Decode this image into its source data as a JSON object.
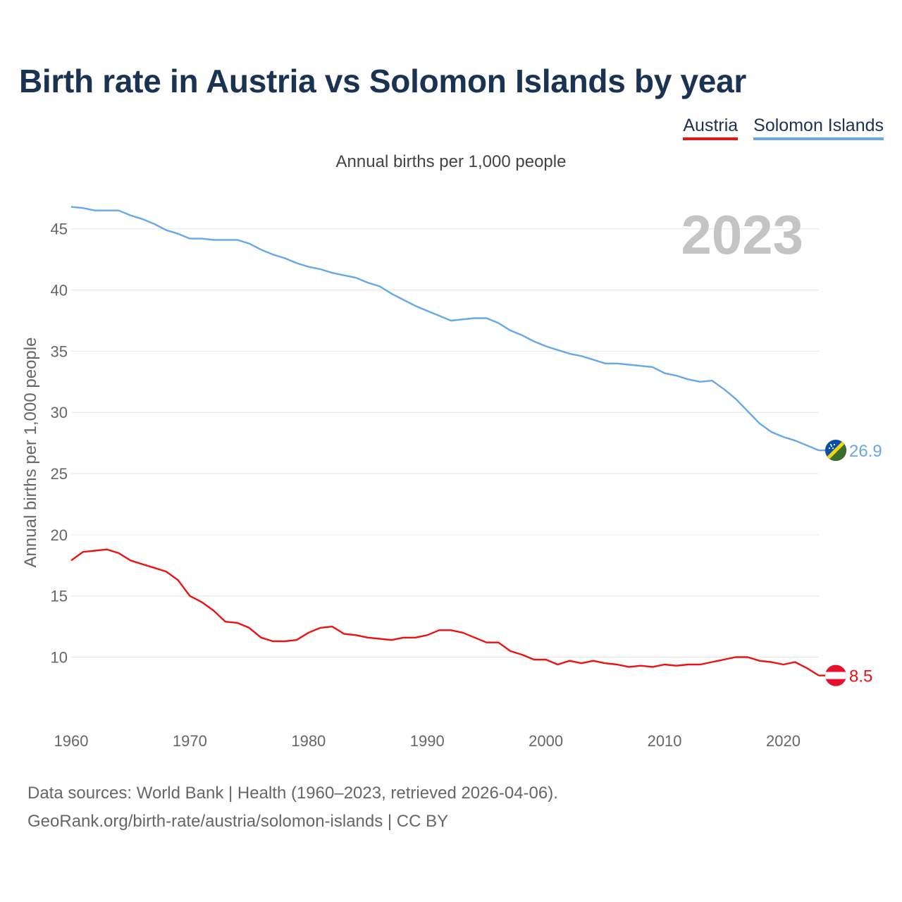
{
  "title": "Birth rate in Austria vs Solomon Islands by year",
  "subtitle": "Annual births per 1,000 people",
  "legend": [
    {
      "label": "Austria",
      "color": "#ee1111"
    },
    {
      "label": "Solomon Islands",
      "color": "#66a8e8"
    }
  ],
  "source": {
    "line1": "Data sources: World Bank | Health (1960–2023, retrieved 2026-04-06).",
    "line2": "GeoRank.org/birth-rate/austria/solomon-islands | CC BY"
  },
  "chart_data": {
    "type": "line",
    "title": "Birth rate in Austria vs Solomon Islands by year",
    "ylabel": "Annual births per 1,000 people",
    "xlabel": "",
    "year_label": "2023",
    "xlim": [
      1960,
      2023
    ],
    "ylim": [
      6,
      47
    ],
    "x_ticks": [
      1960,
      1970,
      1980,
      1990,
      2000,
      2010,
      2020
    ],
    "y_ticks": [
      10,
      15,
      20,
      25,
      30,
      35,
      40,
      45
    ],
    "x": [
      1960,
      1961,
      1962,
      1963,
      1964,
      1965,
      1966,
      1967,
      1968,
      1969,
      1970,
      1971,
      1972,
      1973,
      1974,
      1975,
      1976,
      1977,
      1978,
      1979,
      1980,
      1981,
      1982,
      1983,
      1984,
      1985,
      1986,
      1987,
      1988,
      1989,
      1990,
      1991,
      1992,
      1993,
      1994,
      1995,
      1996,
      1997,
      1998,
      1999,
      2000,
      2001,
      2002,
      2003,
      2004,
      2005,
      2006,
      2007,
      2008,
      2009,
      2010,
      2011,
      2012,
      2013,
      2014,
      2015,
      2016,
      2017,
      2018,
      2019,
      2020,
      2021,
      2022,
      2023
    ],
    "series": [
      {
        "name": "Austria",
        "color": "#ee1111",
        "end_label": "8.5",
        "values": [
          17.9,
          18.6,
          18.7,
          18.8,
          18.5,
          17.9,
          17.6,
          17.3,
          17.0,
          16.3,
          15.0,
          14.5,
          13.8,
          12.9,
          12.8,
          12.4,
          11.6,
          11.3,
          11.3,
          11.4,
          12.0,
          12.4,
          12.5,
          11.9,
          11.8,
          11.6,
          11.5,
          11.4,
          11.6,
          11.6,
          11.8,
          12.2,
          12.2,
          12.0,
          11.6,
          11.2,
          11.2,
          10.5,
          10.2,
          9.8,
          9.8,
          9.4,
          9.7,
          9.5,
          9.7,
          9.5,
          9.4,
          9.2,
          9.3,
          9.2,
          9.4,
          9.3,
          9.4,
          9.4,
          9.6,
          9.8,
          10.0,
          10.0,
          9.7,
          9.6,
          9.4,
          9.6,
          9.1,
          8.5
        ]
      },
      {
        "name": "Solomon Islands",
        "color": "#66a8e8",
        "end_label": "26.9",
        "values": [
          46.8,
          46.7,
          46.5,
          46.5,
          46.5,
          46.1,
          45.8,
          45.4,
          44.9,
          44.6,
          44.2,
          44.2,
          44.1,
          44.1,
          44.1,
          43.8,
          43.3,
          42.9,
          42.6,
          42.2,
          41.9,
          41.7,
          41.4,
          41.2,
          41.0,
          40.6,
          40.3,
          39.7,
          39.2,
          38.7,
          38.3,
          37.9,
          37.5,
          37.6,
          37.7,
          37.7,
          37.3,
          36.7,
          36.3,
          35.8,
          35.4,
          35.1,
          34.8,
          34.6,
          34.3,
          34.0,
          34.0,
          33.9,
          33.8,
          33.7,
          33.2,
          33.0,
          32.7,
          32.5,
          32.6,
          31.9,
          31.1,
          30.1,
          29.1,
          28.4,
          28.0,
          27.7,
          27.3,
          26.9
        ]
      }
    ]
  }
}
